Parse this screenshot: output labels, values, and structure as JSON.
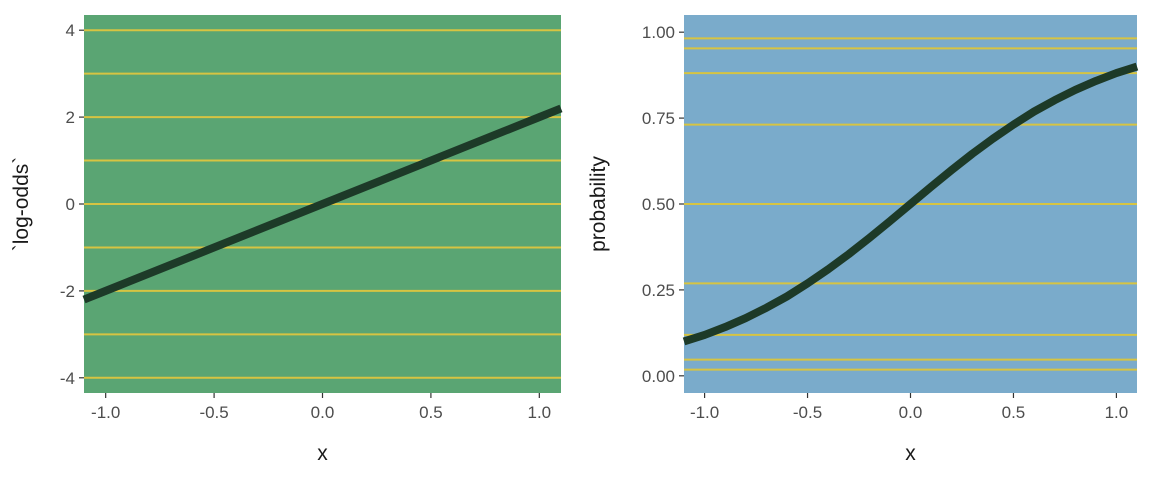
{
  "chart_data": [
    {
      "type": "line",
      "xlabel": "x",
      "ylabel": "`log-odds`",
      "xlim": [
        -1.1,
        1.1
      ],
      "ylim": [
        -4.35,
        4.35
      ],
      "x_ticks": [
        -1.0,
        -0.5,
        0.0,
        0.5,
        1.0
      ],
      "x_tick_labels": [
        "-1.0",
        "-0.5",
        "0.0",
        "0.5",
        "1.0"
      ],
      "y_ticks": [
        -4,
        -2,
        0,
        2,
        4
      ],
      "y_tick_labels": [
        "-4",
        "-2",
        "0",
        "2",
        "4"
      ],
      "hlines": [
        -4,
        -3,
        -2,
        -1,
        0,
        1,
        2,
        3,
        4
      ],
      "series": [
        {
          "x": [
            -1.1,
            -1.0,
            -0.5,
            0.0,
            0.5,
            1.0,
            1.1
          ],
          "y": [
            -2.2,
            -2.0,
            -1.0,
            0.0,
            1.0,
            2.0,
            2.2
          ]
        }
      ],
      "colors": {
        "panel": "#5aa573",
        "gridline": "#d6c442",
        "line": "#1d3a28"
      }
    },
    {
      "type": "line",
      "xlabel": "x",
      "ylabel": "probability",
      "xlim": [
        -1.1,
        1.1
      ],
      "ylim": [
        -0.05,
        1.05
      ],
      "x_ticks": [
        -1.0,
        -0.5,
        0.0,
        0.5,
        1.0
      ],
      "x_tick_labels": [
        "-1.0",
        "-0.5",
        "0.0",
        "0.5",
        "1.0"
      ],
      "y_ticks": [
        0.0,
        0.25,
        0.5,
        0.75,
        1.0
      ],
      "y_tick_labels": [
        "0.00",
        "0.25",
        "0.50",
        "0.75",
        "1.00"
      ],
      "hlines": [
        0.018,
        0.047,
        0.119,
        0.269,
        0.5,
        0.731,
        0.881,
        0.953,
        0.982
      ],
      "series": [
        {
          "x": [
            -1.1,
            -1.0,
            -0.9,
            -0.8,
            -0.7,
            -0.6,
            -0.5,
            -0.4,
            -0.3,
            -0.2,
            -0.1,
            0.0,
            0.1,
            0.2,
            0.3,
            0.4,
            0.5,
            0.6,
            0.7,
            0.8,
            0.9,
            1.0,
            1.1
          ],
          "y": [
            0.1,
            0.119,
            0.142,
            0.168,
            0.198,
            0.231,
            0.269,
            0.31,
            0.354,
            0.401,
            0.45,
            0.5,
            0.55,
            0.599,
            0.646,
            0.69,
            0.731,
            0.769,
            0.802,
            0.832,
            0.858,
            0.881,
            0.9
          ]
        }
      ],
      "colors": {
        "panel": "#7aabcb",
        "gridline": "#d6c442",
        "line": "#1d3a28"
      }
    }
  ]
}
